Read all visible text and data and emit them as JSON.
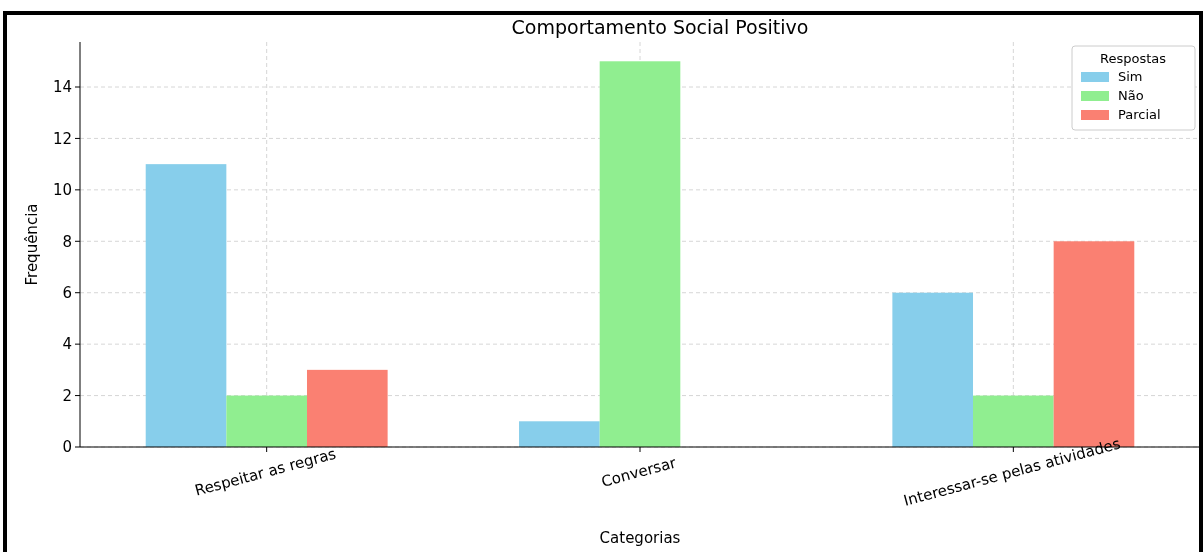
{
  "chart_data": {
    "type": "bar",
    "title": "Comportamento Social Positivo",
    "xlabel": "Categorias",
    "ylabel": "Frequência",
    "categories": [
      "Respeitar as regras",
      "Conversar",
      "Interessar-se pelas atividades"
    ],
    "series": [
      {
        "name": "Sim",
        "color": "#87ceeb",
        "values": [
          11,
          1,
          6
        ]
      },
      {
        "name": "Não",
        "color": "#90ee90",
        "values": [
          2,
          15,
          2
        ]
      },
      {
        "name": "Parcial",
        "color": "#fa8072",
        "values": [
          3,
          0,
          8
        ]
      }
    ],
    "ylim": [
      0,
      15.75
    ],
    "yticks": [
      0,
      2,
      4,
      6,
      8,
      10,
      12,
      14
    ],
    "grid": true,
    "legend": "top right",
    "legend_title": "Respostas"
  }
}
